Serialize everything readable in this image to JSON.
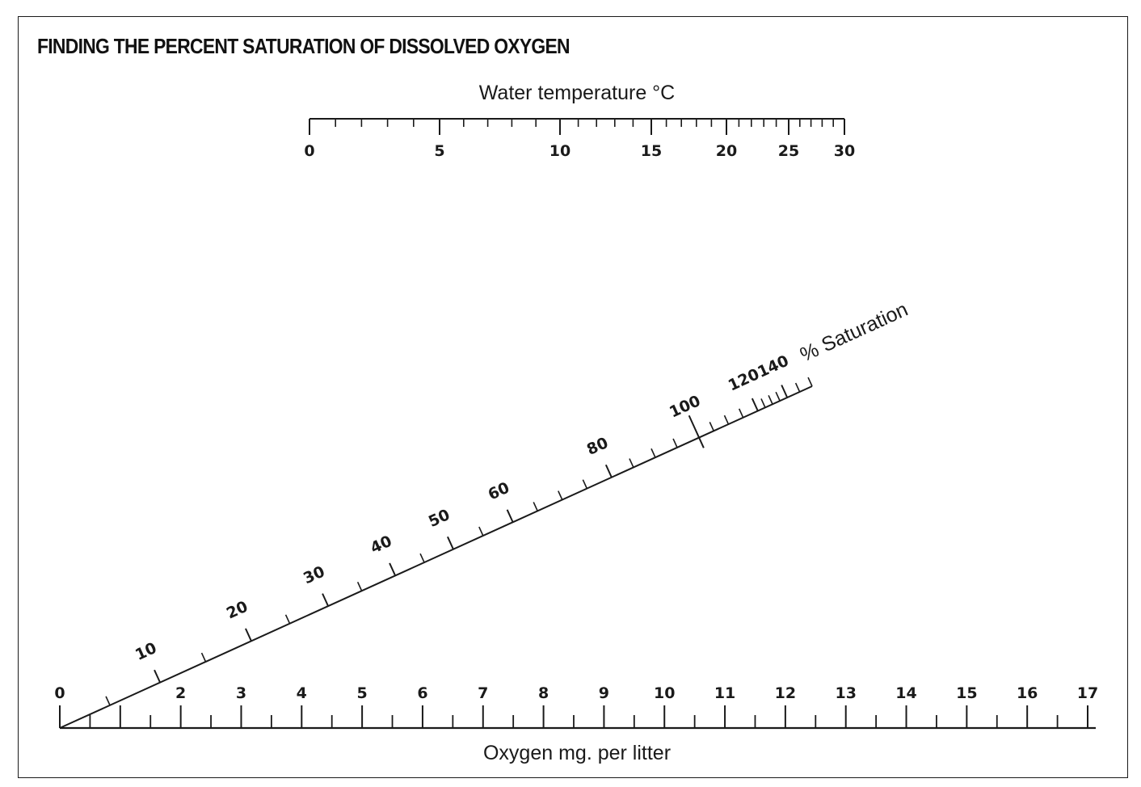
{
  "title": "FINDING THE PERCENT SATURATION OF DISSOLVED OXYGEN",
  "temperature_scale": {
    "label": "Water temperature",
    "unit": "°C",
    "major_ticks": [
      0,
      5,
      10,
      15,
      20,
      25,
      30
    ],
    "minor_ticks": [
      1,
      2,
      3,
      4,
      6,
      7,
      8,
      9,
      11,
      12,
      13,
      14,
      16,
      17,
      18,
      19,
      21,
      22,
      23,
      24,
      26,
      27,
      28,
      29
    ]
  },
  "saturation_scale": {
    "label": "% Saturation",
    "major_ticks": [
      10,
      20,
      30,
      40,
      50,
      60,
      80,
      100,
      120,
      140
    ],
    "minor_ticks": [
      5,
      15,
      25,
      35,
      45,
      55,
      65,
      70,
      75,
      85,
      90,
      95,
      105,
      110,
      115,
      125,
      130,
      135,
      145,
      150
    ]
  },
  "oxygen_scale": {
    "label": "Oxygen mg. per litter",
    "major_ticks": [
      0,
      1,
      2,
      3,
      4,
      5,
      6,
      7,
      8,
      9,
      10,
      11,
      12,
      13,
      14,
      15,
      16,
      17
    ],
    "labeled_ticks": [
      "0",
      "2",
      "3",
      "4",
      "5",
      "6",
      "7",
      "8",
      "9",
      "10",
      "11",
      "12",
      "13",
      "14",
      "15",
      "16",
      "17"
    ]
  },
  "colors": {
    "ink": "#1a1a1a",
    "background": "#ffffff"
  }
}
